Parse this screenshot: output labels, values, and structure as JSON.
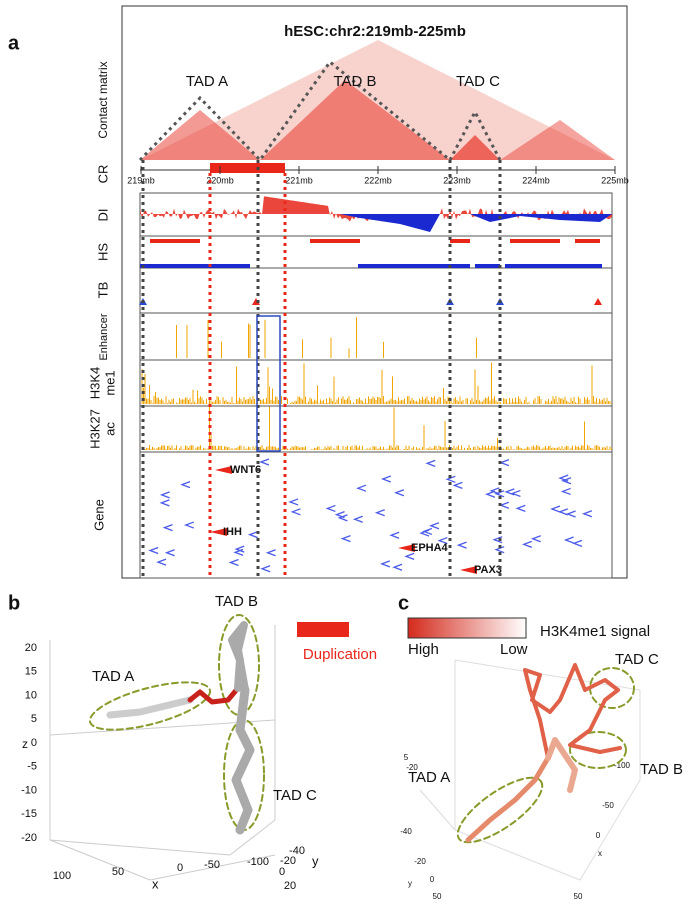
{
  "a": {
    "label": "a",
    "title": "hESC:chr2:219mb-225mb",
    "tracks": [
      "Contact matrix",
      "CR",
      "DI",
      "HS",
      "TB",
      "Enhancer",
      "Gene"
    ],
    "h3k4": [
      "H3K4",
      "me1"
    ],
    "h3k27": [
      "H3K27",
      "ac"
    ],
    "tads": [
      "TAD A",
      "TAD B",
      "TAD C"
    ],
    "ruler": [
      "219mb",
      "220mb",
      "221mb",
      "222mb",
      "223mb",
      "224mb",
      "225mb"
    ],
    "genes": [
      "WNT6",
      "IHH",
      "EPHA4",
      "PAX3"
    ]
  },
  "b": {
    "label": "b",
    "legend": "Duplication",
    "tads": [
      "TAD A",
      "TAD B",
      "TAD C"
    ],
    "axes": [
      "z",
      "x",
      "y"
    ],
    "zticks": [
      "20",
      "15",
      "10",
      "5",
      "0",
      "-5",
      "-10",
      "-15",
      "-20"
    ],
    "xticks": [
      "100",
      "50",
      "0",
      "-50",
      "-100"
    ],
    "yticks": [
      "-40",
      "-20",
      "0",
      "20"
    ]
  },
  "c": {
    "label": "c",
    "legend": "H3K4me1 signal",
    "high": "High",
    "low": "Low",
    "tads": [
      "TAD A",
      "TAD B",
      "TAD C"
    ],
    "ticks": [
      "5",
      "-20",
      "-40",
      "-20",
      "y",
      "0",
      "50",
      "-100",
      "-50",
      "0",
      "x",
      "50"
    ]
  }
}
